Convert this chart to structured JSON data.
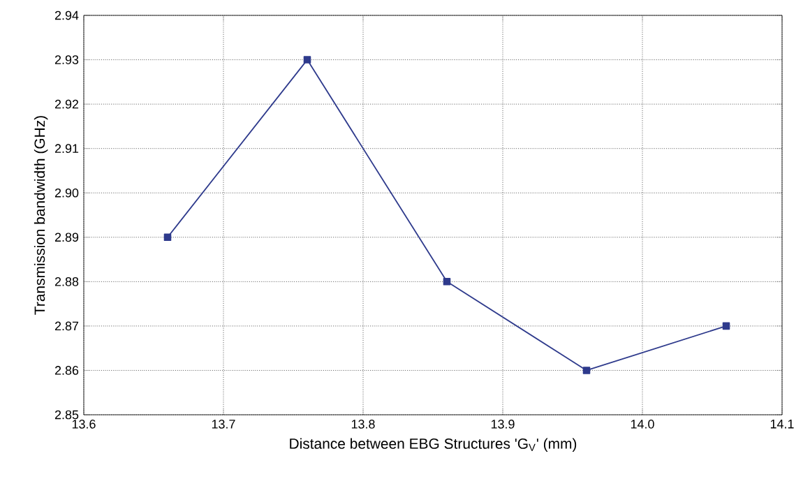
{
  "chart_data": {
    "type": "line",
    "xlabel": "Distance between EBG Structures 'G$_{V}$' (mm)",
    "ylabel": "Transmission bandwidth (GHz)",
    "x": [
      13.66,
      13.76,
      13.86,
      13.96,
      14.06
    ],
    "series": [
      {
        "color": "#2e3a8c",
        "values": [
          2.89,
          2.93,
          2.88,
          2.86,
          2.87
        ]
      }
    ],
    "xlim": [
      13.6,
      14.1
    ],
    "ylim": [
      2.85,
      2.94
    ],
    "xticks": [
      13.6,
      13.7,
      13.8,
      13.9,
      {
        "value": 14.0,
        "label": "14.0"
      },
      14.1
    ],
    "yticks": [
      2.85,
      2.86,
      2.87,
      2.88,
      2.89,
      {
        "value": 2.9,
        "label": "2.90"
      },
      2.91,
      2.92,
      2.93,
      2.94
    ],
    "grid": true,
    "marker": "square",
    "line_style": "solid"
  }
}
